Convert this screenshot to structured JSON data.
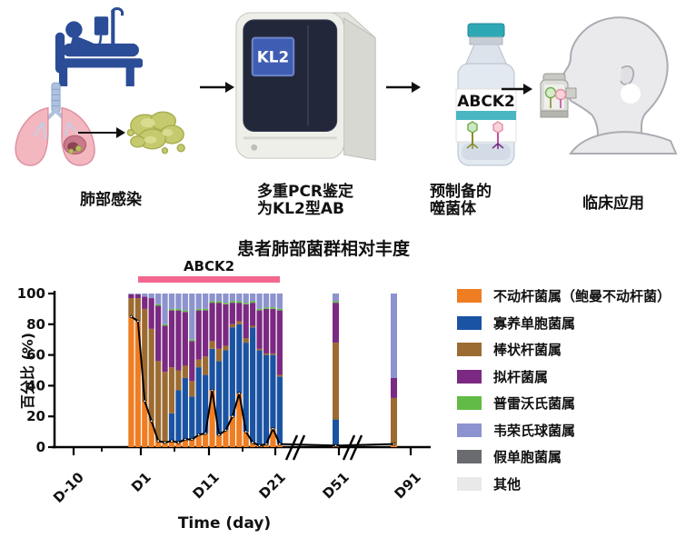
{
  "workflow": {
    "steps": [
      {
        "label": "肺部感染"
      },
      {
        "label_line1": "多重PCR鉴定",
        "label_line2": "为KL2型AB",
        "screen_text": "KL2"
      },
      {
        "label_line1": "预制备的",
        "label_line2": "噬菌体",
        "vial_text": "ABCK2"
      },
      {
        "label": "临床应用"
      }
    ]
  },
  "chart_data": {
    "type": "bar",
    "subtype": "stacked-percent-bars-with-line-overlay",
    "title": "患者肺部菌群相对丰度",
    "annotation": {
      "label": "ABCK2",
      "color": "#F2688F",
      "span": "D1–D21"
    },
    "ylabel": "百分比 (%)",
    "xlabel": "Time (day)",
    "ylim": [
      0,
      100
    ],
    "yticks": [
      0,
      20,
      40,
      60,
      80,
      100
    ],
    "xticks": [
      "D-10",
      "D1",
      "D11",
      "D21",
      "D51",
      "D91"
    ],
    "axis_breaks": [
      "between D21 and D51",
      "between D51 and D91"
    ],
    "legend_position": "right",
    "legend": [
      {
        "key": "acinetobacter",
        "label": "不动杆菌属（鲍曼不动杆菌）",
        "color": "#EF7D22"
      },
      {
        "key": "stenotrophomonas",
        "label": "寡养单胞菌属",
        "color": "#1B53A3"
      },
      {
        "key": "corynebacterium",
        "label": "棒状杆菌属",
        "color": "#9C6B31"
      },
      {
        "key": "bacteroides",
        "label": "拟杆菌属",
        "color": "#7B2982"
      },
      {
        "key": "prevotella",
        "label": "普雷沃氏菌属",
        "color": "#62BB46"
      },
      {
        "key": "veillonella",
        "label": "韦荣氏球菌属",
        "color": "#8C93CE"
      },
      {
        "key": "pseudomonas",
        "label": "假单胞菌属",
        "color": "#6A6B6E"
      },
      {
        "key": "other",
        "label": "其他",
        "color": "#E9E9E9"
      }
    ],
    "samples": [
      {
        "day": "D0",
        "group": "daily",
        "values": [
          85,
          0,
          12,
          2.5,
          0,
          0.5,
          0,
          0
        ]
      },
      {
        "day": "D1",
        "group": "daily",
        "values": [
          82,
          0,
          15,
          2.5,
          0,
          0.5,
          0,
          0
        ]
      },
      {
        "day": "D2",
        "group": "daily",
        "values": [
          30,
          0,
          60,
          8,
          0,
          2,
          0,
          0
        ]
      },
      {
        "day": "D3",
        "group": "daily",
        "values": [
          17,
          0,
          60,
          20,
          0,
          3,
          0,
          0
        ]
      },
      {
        "day": "D4",
        "group": "daily",
        "values": [
          4,
          0,
          52,
          36,
          1,
          7,
          0,
          0
        ]
      },
      {
        "day": "D5",
        "group": "daily",
        "values": [
          3,
          0,
          46,
          30,
          1,
          20,
          0,
          0
        ]
      },
      {
        "day": "D6",
        "group": "daily",
        "values": [
          4,
          18,
          30,
          37,
          1,
          10,
          0,
          0
        ]
      },
      {
        "day": "D7",
        "group": "daily",
        "values": [
          3,
          34,
          13,
          39,
          1,
          10,
          0,
          0
        ]
      },
      {
        "day": "D8",
        "group": "daily",
        "values": [
          5,
          40,
          8,
          35,
          1,
          11,
          0,
          0
        ]
      },
      {
        "day": "D9",
        "group": "daily",
        "values": [
          5,
          28,
          10,
          26,
          1,
          30,
          0,
          0
        ]
      },
      {
        "day": "D10",
        "group": "daily",
        "values": [
          8,
          44,
          5,
          32,
          1,
          10,
          0,
          0
        ]
      },
      {
        "day": "D11",
        "group": "daily",
        "values": [
          9,
          38,
          12,
          30,
          1,
          10,
          0,
          0
        ]
      },
      {
        "day": "D12",
        "group": "daily",
        "values": [
          37,
          27,
          5,
          25,
          1,
          5,
          0,
          0
        ]
      },
      {
        "day": "D13",
        "group": "daily",
        "values": [
          8,
          48,
          8,
          30,
          1,
          5,
          0,
          0
        ]
      },
      {
        "day": "D14",
        "group": "daily",
        "values": [
          11,
          52,
          3,
          27,
          1,
          6,
          0,
          0
        ]
      },
      {
        "day": "D15",
        "group": "daily",
        "values": [
          20,
          58,
          2,
          14,
          1,
          5,
          0,
          0
        ]
      },
      {
        "day": "D16",
        "group": "daily",
        "values": [
          35,
          45,
          2,
          12,
          1,
          5,
          0,
          0
        ]
      },
      {
        "day": "D17",
        "group": "daily",
        "values": [
          10,
          58,
          3,
          22,
          1,
          6,
          0,
          0
        ]
      },
      {
        "day": "D18",
        "group": "daily",
        "values": [
          3,
          75,
          1,
          15,
          1,
          5,
          0,
          0
        ]
      },
      {
        "day": "D19",
        "group": "daily",
        "values": [
          1,
          62,
          1,
          25,
          1,
          10,
          0,
          0
        ]
      },
      {
        "day": "D20",
        "group": "daily",
        "values": [
          2,
          58,
          1,
          29,
          1,
          9,
          0,
          0
        ]
      },
      {
        "day": "D21",
        "group": "daily",
        "values": [
          12,
          48,
          1,
          29,
          1,
          9,
          0,
          0
        ]
      },
      {
        "day": "D22",
        "group": "daily",
        "values": [
          2,
          44,
          1,
          42,
          1,
          10,
          0,
          0
        ]
      },
      {
        "day": "D51",
        "group": "isolated",
        "values": [
          1,
          17,
          50,
          26,
          1,
          5,
          0,
          0
        ]
      },
      {
        "day": "D91",
        "group": "isolated",
        "values": [
          2,
          0,
          30,
          13,
          0,
          55,
          0,
          0
        ]
      }
    ],
    "line_series": {
      "name": "不动杆菌属相对丰度趋势线",
      "values": [
        85,
        82,
        30,
        17,
        4,
        3,
        4,
        3,
        5,
        5,
        8,
        9,
        37,
        8,
        11,
        20,
        35,
        10,
        3,
        1,
        2,
        12,
        2,
        1,
        2
      ]
    }
  }
}
